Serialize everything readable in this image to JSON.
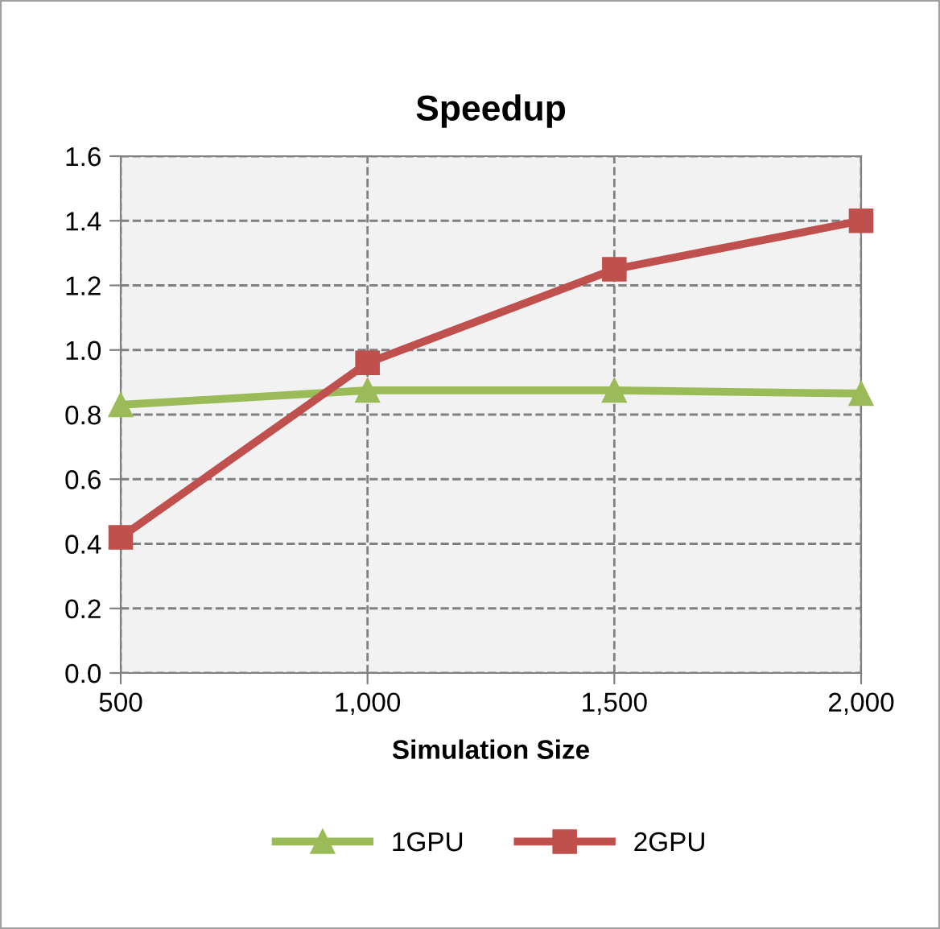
{
  "chart_data": {
    "type": "line",
    "title": "Speedup",
    "xlabel": "Simulation Size",
    "x": [
      500,
      1000,
      1500,
      2000
    ],
    "series": [
      {
        "name": "1GPU",
        "color": "#9bbb59",
        "marker": "triangle",
        "values": [
          0.83,
          0.875,
          0.875,
          0.865
        ]
      },
      {
        "name": "2GPU",
        "color": "#c0504d",
        "marker": "square",
        "values": [
          0.42,
          0.96,
          1.25,
          1.4
        ]
      }
    ],
    "xlim": [
      500,
      2000
    ],
    "xticks": [
      500,
      {
        "value": 1000,
        "label": "1,000"
      },
      {
        "value": 1500,
        "label": "1,500"
      },
      {
        "value": 2000,
        "label": "2,000"
      }
    ],
    "ylim": [
      0,
      1.6
    ],
    "yticks": [
      {
        "value": 0,
        "label": "0.0"
      },
      0.2,
      0.4,
      0.6,
      0.8,
      {
        "value": 1,
        "label": "1.0"
      },
      1.2,
      1.4,
      1.6
    ],
    "grid": true,
    "legend": "bottom",
    "line_style": "solid"
  }
}
